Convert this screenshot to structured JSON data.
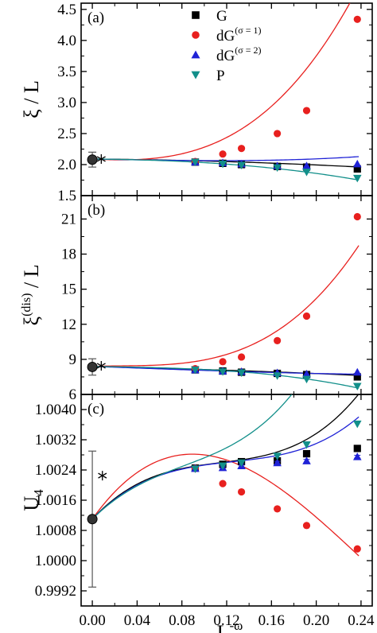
{
  "chart_data": {
    "type": "scatter",
    "x_axis": {
      "label_base": "L",
      "label_sup": "-ω",
      "range": [
        -0.01,
        0.25
      ],
      "ticks": [
        0.0,
        0.04,
        0.08,
        0.12,
        0.16,
        0.2,
        0.24
      ],
      "tick_labels": [
        "0.00",
        "0.04",
        "0.08",
        "0.12",
        "0.16",
        "0.20",
        "0.24"
      ]
    },
    "legend": {
      "placement": "top-center",
      "entries": [
        {
          "label": "G",
          "sup": ""
        },
        {
          "label": "dG",
          "sup": "(σ = 1)"
        },
        {
          "label": "dG",
          "sup": "(σ = 2)"
        },
        {
          "label": "P",
          "sup": ""
        }
      ]
    },
    "series_styles": [
      {
        "marker": "square",
        "color": "#000000",
        "line_color": "#000000"
      },
      {
        "marker": "circle",
        "color": "#e8201e",
        "line_color": "#e8201e"
      },
      {
        "marker": "triangle-up",
        "color": "#1f22d6",
        "line_color": "#1f22d6"
      },
      {
        "marker": "triangle-down",
        "color": "#128f8a",
        "line_color": "#128f8a"
      }
    ],
    "panels": [
      {
        "tag": "(a)",
        "ylabel": "ξ / L",
        "ylabel_sup": "",
        "ylim": [
          1.5,
          4.6
        ],
        "yticks": [
          1.5,
          2.0,
          2.5,
          3.0,
          3.5,
          4.0,
          4.5
        ],
        "ytick_labels": [
          "1.5",
          "2.0",
          "2.5",
          "3.0",
          "3.5",
          "4.0",
          "4.5"
        ],
        "x": [
          0.0919,
          0.1165,
          0.1332,
          0.1652,
          0.1914,
          0.2367
        ],
        "series": [
          {
            "values": [
              2.04,
              2.02,
              2.0,
              1.97,
              1.96,
              1.93
            ]
          },
          {
            "values": [
              2.05,
              2.17,
              2.26,
              2.5,
              2.87,
              4.34
            ]
          },
          {
            "values": [
              2.04,
              2.03,
              2.01,
              1.98,
              1.98,
              2.01
            ]
          },
          {
            "values": [
              2.04,
              2.01,
              1.99,
              1.95,
              1.88,
              1.78
            ]
          }
        ],
        "fit_coeffs": [
          [
            2.09,
            -0.16,
            -1.6,
            0
          ],
          [
            2.09,
            -0.9,
            10,
            180
          ],
          [
            2.09,
            -0.35,
            0,
            9
          ],
          [
            2.09,
            -0.2,
            -3,
            -9
          ]
        ],
        "extrapolated": {
          "x": 0.0,
          "y": 2.08,
          "err": 0.12
        },
        "star": {
          "x": 0.008,
          "y": 2.09
        }
      },
      {
        "tag": "(b)",
        "ylabel": "ξ",
        "ylabel_sup": "(dis)",
        "ylabel_suffix": " / L",
        "ylim": [
          6,
          23
        ],
        "yticks": [
          6,
          9,
          12,
          15,
          18,
          21
        ],
        "ytick_labels": [
          "6",
          "9",
          "12",
          "15",
          "18",
          "21"
        ],
        "x": [
          0.0919,
          0.1165,
          0.1332,
          0.1652,
          0.1914,
          0.2367
        ],
        "series": [
          {
            "values": [
              8.1,
              8.0,
              7.9,
              7.8,
              7.7,
              7.5
            ]
          },
          {
            "values": [
              8.2,
              8.8,
              9.2,
              10.6,
              12.7,
              21.2
            ]
          },
          {
            "values": [
              8.1,
              8.0,
              7.95,
              7.85,
              7.75,
              7.9
            ]
          },
          {
            "values": [
              8.1,
              7.95,
              7.85,
              7.6,
              7.3,
              6.7
            ]
          }
        ],
        "fit_coeffs": [
          [
            8.4,
            -2.6,
            0,
            -12
          ],
          [
            8.4,
            3.0,
            -80,
            1050
          ],
          [
            8.4,
            -3.6,
            0,
            14
          ],
          [
            8.4,
            -1.6,
            0,
            -110
          ]
        ],
        "extrapolated": {
          "x": 0.0,
          "y": 8.35,
          "err": 0.7
        },
        "star": {
          "x": 0.008,
          "y": 8.45
        }
      },
      {
        "tag": "(c)",
        "ylabel": "U",
        "ylabel_sub": "4",
        "ylim": [
          0.9988,
          1.0044
        ],
        "yticks": [
          0.9992,
          1.0,
          1.0008,
          1.0016,
          1.0024,
          1.0032,
          1.004
        ],
        "ytick_labels": [
          "0.9992",
          "1.0000",
          "1.0008",
          "1.0016",
          "1.0024",
          "1.0032",
          "1.0040"
        ],
        "x": [
          0.0919,
          0.1165,
          0.1332,
          0.1652,
          0.1914,
          0.2367
        ],
        "series": [
          {
            "values": [
              1.00245,
              1.00255,
              1.00262,
              1.00264,
              1.00283,
              1.00297
            ],
            "err": [
              5e-05,
              5e-05,
              5e-05,
              5e-05,
              5e-05,
              6e-05
            ]
          },
          {
            "values": [
              1.00244,
              1.00204,
              1.00182,
              1.00137,
              1.00093,
              1.00031
            ]
          },
          {
            "values": [
              1.00244,
              1.00246,
              1.00251,
              1.00259,
              1.00264,
              1.00275
            ],
            "err": [
              4e-05,
              4e-05,
              4e-05,
              4e-05,
              4e-05,
              4e-05
            ]
          },
          {
            "values": [
              1.00243,
              1.00251,
              1.00259,
              1.00277,
              1.00307,
              1.00362
            ]
          }
        ],
        "fit_coeffs": [
          [
            1.0011,
            0.0318,
            -0.246,
            0.718
          ],
          [
            1.0011,
            0.0415,
            -0.2838,
            0.3876
          ],
          [
            1.0011,
            0.03,
            -0.2142,
            0.571
          ],
          [
            1.0011,
            0.0294,
            -0.2226,
            0.9073
          ]
        ],
        "extrapolated": {
          "x": 0.0,
          "y": 1.0011,
          "err": 0.0018
        },
        "star": {
          "x": 0.009,
          "y": 1.00225
        }
      }
    ]
  }
}
